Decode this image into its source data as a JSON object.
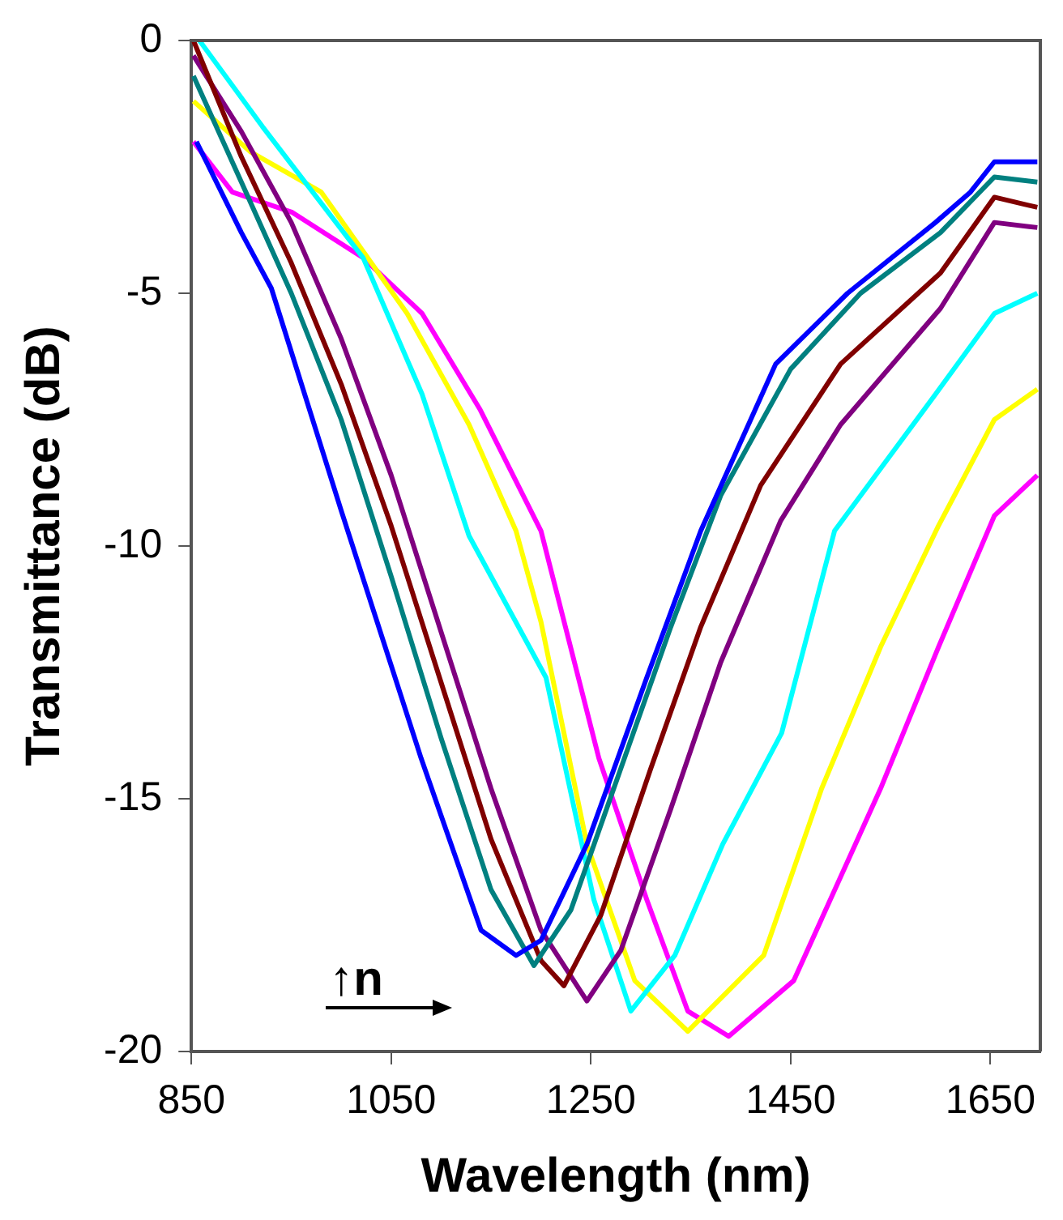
{
  "chart_data": {
    "type": "line",
    "xlabel": "Wavelength (nm)",
    "ylabel": "Transmittance (dB)",
    "xlim": [
      850,
      1700
    ],
    "ylim": [
      -20,
      0
    ],
    "xticks": [
      850,
      1050,
      1250,
      1450,
      1650
    ],
    "yticks": [
      0,
      -5,
      -10,
      -15,
      -20
    ],
    "grid": false,
    "legend": false,
    "annotations": [
      "↑n"
    ],
    "series": [
      {
        "color": "#0000ff",
        "x": [
          855,
          900,
          930,
          1000,
          1080,
          1140,
          1175,
          1200,
          1246,
          1306,
          1360,
          1435,
          1507,
          1595,
          1630,
          1654,
          1697
        ],
        "values": [
          -2,
          -3.8,
          -4.9,
          -9.3,
          -14.2,
          -17.6,
          -18.1,
          -17.8,
          -15.9,
          -12.6,
          -9.7,
          -6.4,
          -5.0,
          -3.6,
          -3.0,
          -2.4,
          -2.4
        ]
      },
      {
        "color": "#008080",
        "x": [
          852,
          900,
          950,
          1000,
          1050,
          1100,
          1150,
          1193,
          1230,
          1280,
          1330,
          1380,
          1450,
          1520,
          1600,
          1654,
          1697
        ],
        "values": [
          -0.7,
          -2.8,
          -5.0,
          -7.5,
          -10.6,
          -13.8,
          -16.8,
          -18.3,
          -17.2,
          -14.4,
          -11.6,
          -9.0,
          -6.5,
          -5.0,
          -3.8,
          -2.7,
          -2.8
        ]
      },
      {
        "color": "#800000",
        "x": [
          852,
          900,
          950,
          1000,
          1050,
          1100,
          1150,
          1200,
          1223,
          1260,
          1310,
          1360,
          1420,
          1500,
          1600,
          1654,
          1697
        ],
        "values": [
          0,
          -2.3,
          -4.4,
          -6.8,
          -9.6,
          -12.7,
          -15.8,
          -18.2,
          -18.7,
          -17.3,
          -14.4,
          -11.6,
          -8.8,
          -6.4,
          -4.6,
          -3.1,
          -3.3
        ]
      },
      {
        "color": "#800080",
        "x": [
          852,
          900,
          950,
          1000,
          1050,
          1100,
          1150,
          1200,
          1246,
          1280,
          1330,
          1380,
          1440,
          1500,
          1600,
          1654,
          1697
        ],
        "values": [
          -0.3,
          -1.8,
          -3.6,
          -5.9,
          -8.6,
          -11.7,
          -14.8,
          -17.6,
          -19.0,
          -18.0,
          -15.2,
          -12.3,
          -9.5,
          -7.6,
          -5.3,
          -3.6,
          -3.7
        ]
      },
      {
        "color": "#00ffff",
        "x": [
          858,
          921,
          1022,
          1081,
          1128,
          1205,
          1253,
          1290,
          1334,
          1382,
          1441,
          1494,
          1595,
          1654,
          1697
        ],
        "values": [
          0,
          -1.7,
          -4.3,
          -7.0,
          -9.8,
          -12.6,
          -17.0,
          -19.2,
          -18.1,
          -15.9,
          -13.7,
          -9.7,
          -7.0,
          -5.4,
          -5.0
        ]
      },
      {
        "color": "#ffff00",
        "x": [
          852,
          909,
          980,
          1066,
          1128,
          1175,
          1200,
          1246,
          1294,
          1347,
          1423,
          1481,
          1540,
          1598,
          1654,
          1697
        ],
        "values": [
          -1.2,
          -2.2,
          -3.0,
          -5.4,
          -7.6,
          -9.7,
          -11.5,
          -15.9,
          -18.6,
          -19.6,
          -18.1,
          -14.8,
          -12.0,
          -9.6,
          -7.5,
          -6.9
        ]
      },
      {
        "color": "#ff00ff",
        "x": [
          852,
          891,
          951,
          1022,
          1081,
          1139,
          1200,
          1258,
          1306,
          1347,
          1388,
          1453,
          1540,
          1598,
          1654,
          1697
        ],
        "values": [
          -2,
          -3.0,
          -3.4,
          -4.3,
          -5.4,
          -7.3,
          -9.7,
          -14.2,
          -17.0,
          -19.2,
          -19.7,
          -18.6,
          -14.8,
          -12.0,
          -9.4,
          -8.6
        ]
      }
    ]
  }
}
